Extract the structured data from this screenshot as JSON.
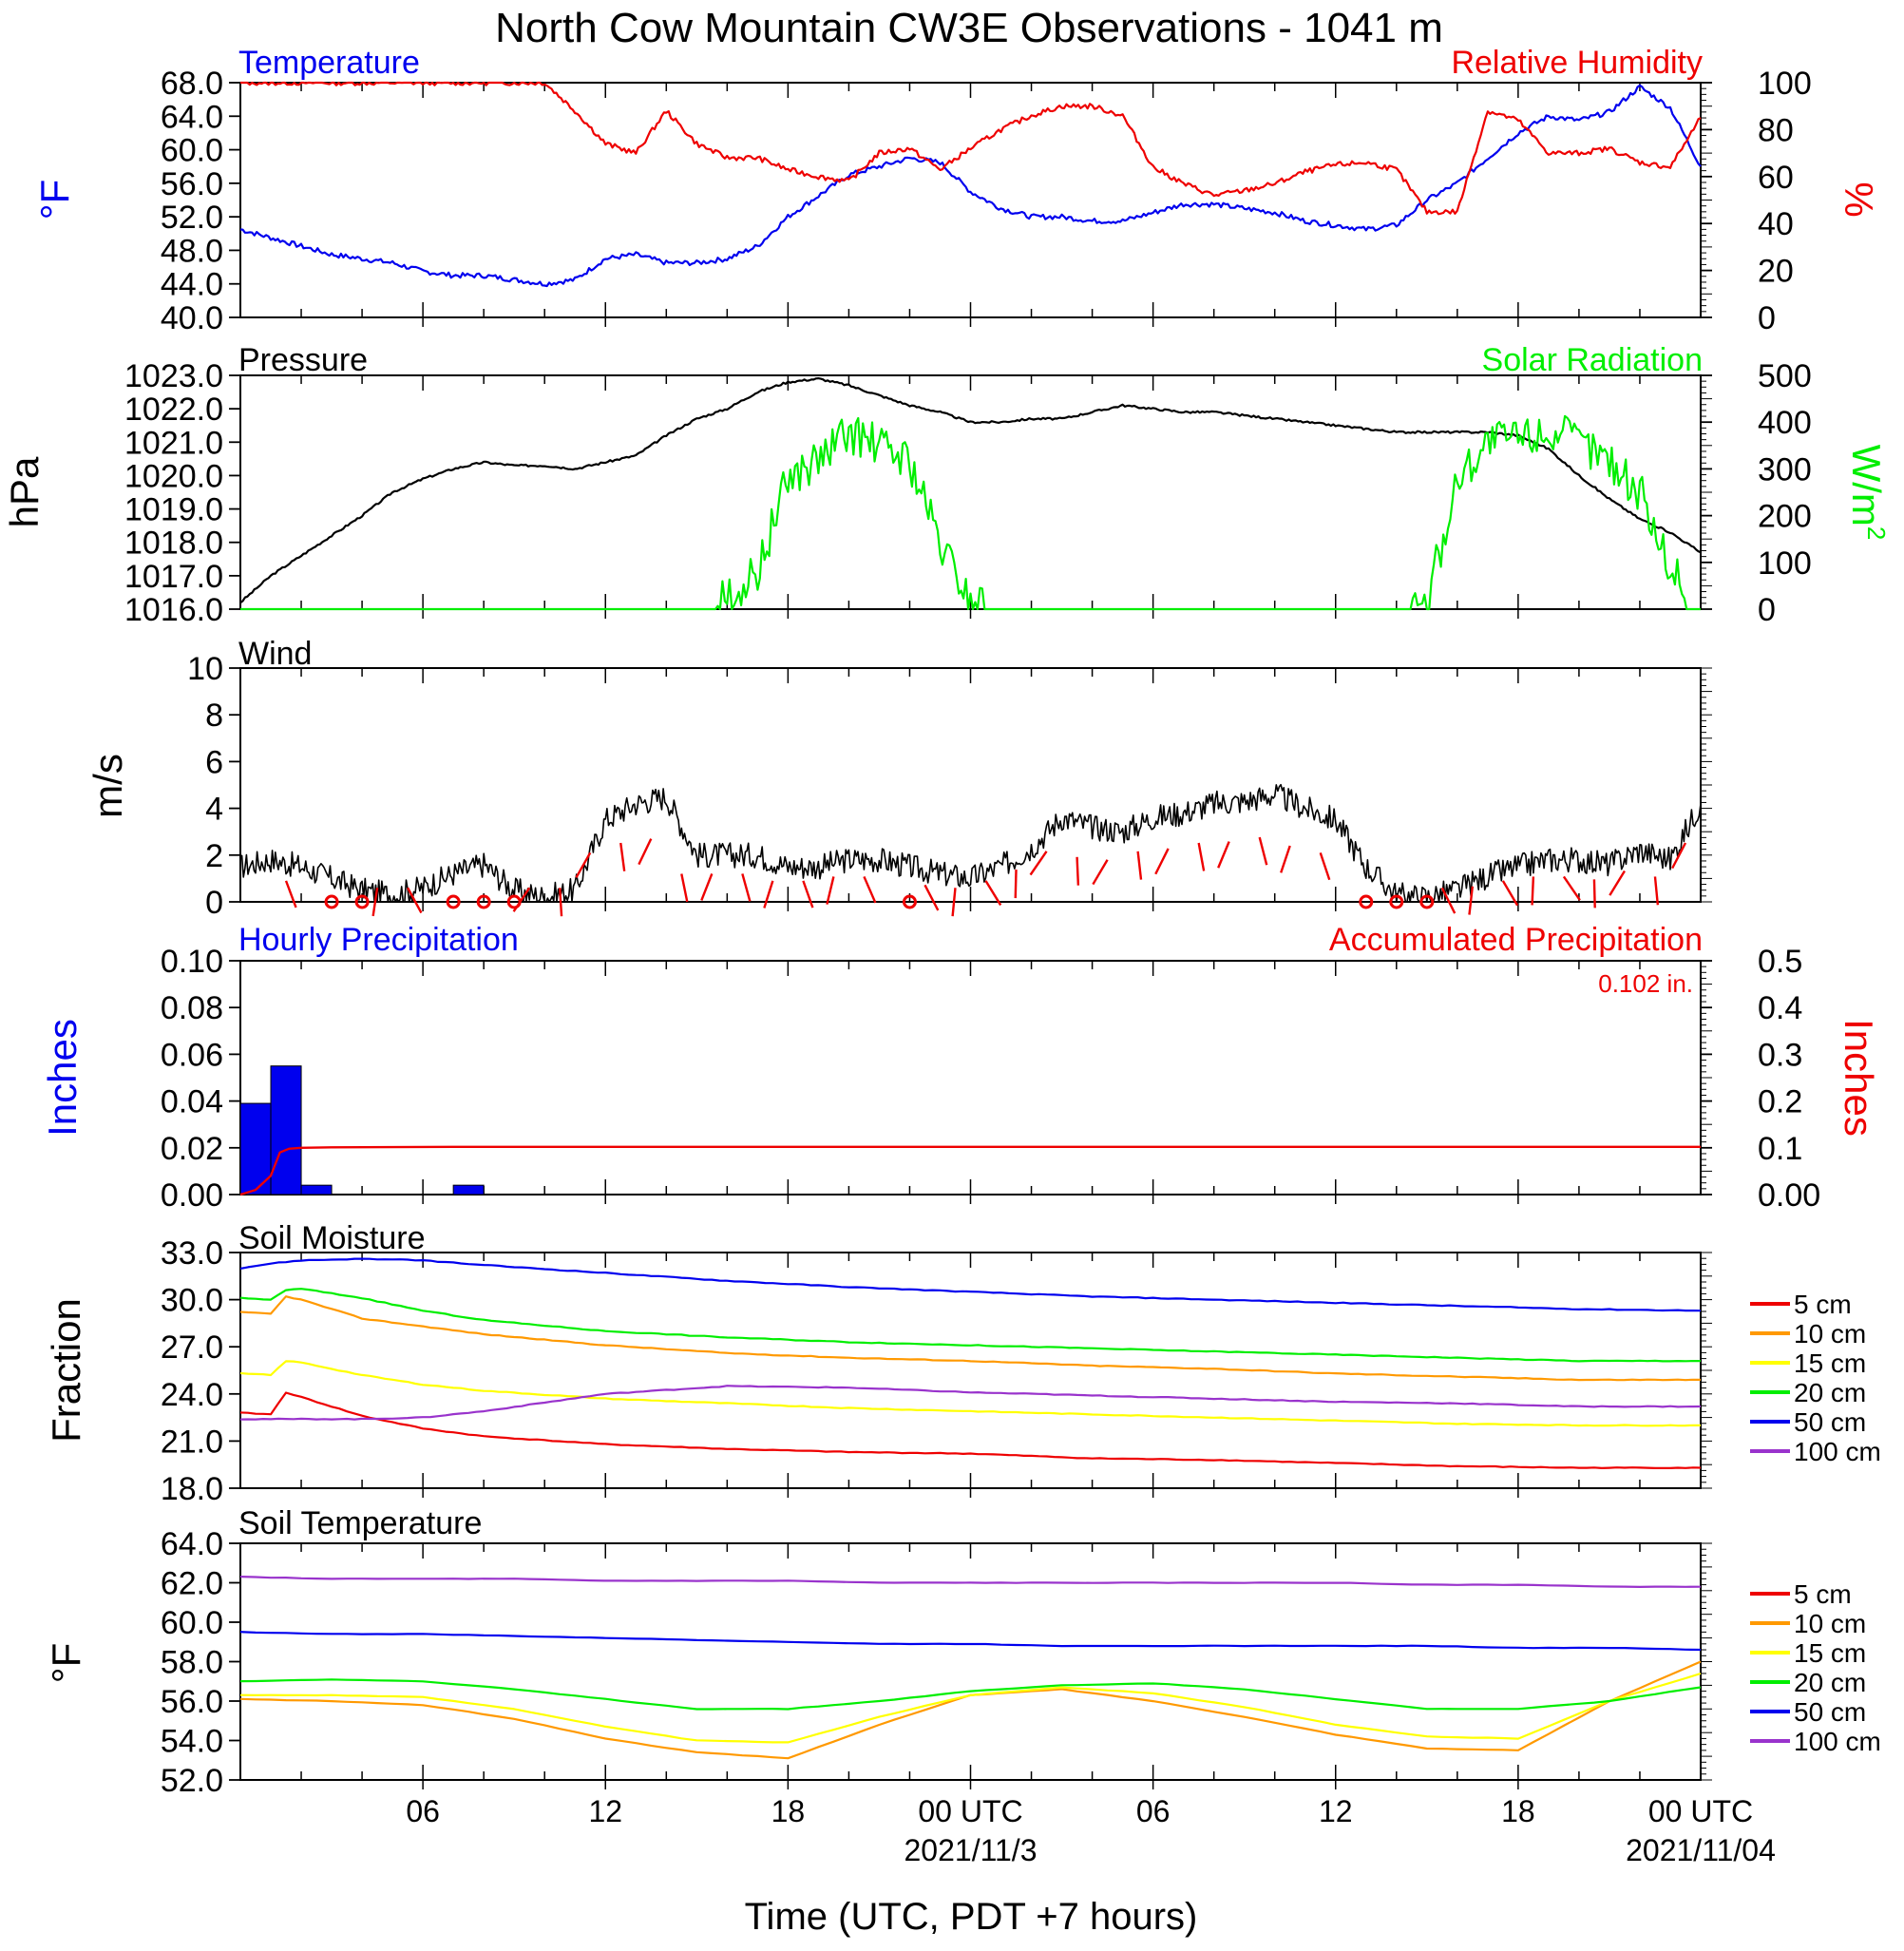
{
  "title": "North Cow Mountain CW3E Observations - 1041 m",
  "time_axis": {
    "tick_labels": [
      "06",
      "12",
      "18",
      "00 UTC",
      "06",
      "12",
      "18",
      "00 UTC"
    ],
    "date_labels": [
      "2021/11/3",
      "2021/11/04"
    ],
    "xlabel": "Time (UTC, PDT +7 hours)"
  },
  "colors": {
    "blue": "#0000ee",
    "red": "#ee0000",
    "green": "#00ee00",
    "black": "#000000",
    "orange": "#ff9900",
    "yellow": "#ffff00",
    "purple": "#9933cc"
  },
  "panels": {
    "temp_rh": {
      "left_title": "Temperature",
      "right_title": "Relative Humidity",
      "left_unit": "°F",
      "right_unit": "%",
      "left_ticks": [
        "68.0",
        "64.0",
        "60.0",
        "56.0",
        "52.0",
        "48.0",
        "44.0",
        "40.0"
      ],
      "right_ticks": [
        "100",
        "80",
        "60",
        "40",
        "20",
        "0"
      ]
    },
    "pressure_solar": {
      "left_title": "Pressure",
      "right_title": "Solar Radiation",
      "left_unit": "hPa",
      "right_unit": "W/m",
      "right_unit_sup": "2",
      "left_ticks": [
        "1023.0",
        "1022.0",
        "1021.0",
        "1020.0",
        "1019.0",
        "1018.0",
        "1017.0",
        "1016.0"
      ],
      "right_ticks": [
        "500",
        "400",
        "300",
        "200",
        "100",
        "0"
      ]
    },
    "wind": {
      "left_title": "Wind",
      "left_unit": "m/s",
      "left_ticks": [
        "10",
        "8",
        "6",
        "4",
        "2",
        "0"
      ]
    },
    "precip": {
      "left_title": "Hourly Precipitation",
      "right_title": "Accumulated Precipitation",
      "left_unit": "Inches",
      "right_unit": "Inches",
      "total": "0.102 in.",
      "left_ticks": [
        "0.10",
        "0.08",
        "0.06",
        "0.04",
        "0.02",
        "0.00"
      ],
      "right_ticks": [
        "0.5",
        "0.4",
        "0.3",
        "0.2",
        "0.1",
        "0.00"
      ]
    },
    "soil_moisture": {
      "left_title": "Soil Moisture",
      "left_unit": "Fraction",
      "left_ticks": [
        "33.0",
        "30.0",
        "27.0",
        "24.0",
        "21.0",
        "18.0"
      ],
      "legend": [
        "5 cm",
        "10 cm",
        "15 cm",
        "20 cm",
        "50 cm",
        "100 cm"
      ]
    },
    "soil_temp": {
      "left_title": "Soil Temperature",
      "left_unit": "°F",
      "left_ticks": [
        "64.0",
        "62.0",
        "60.0",
        "58.0",
        "56.0",
        "54.0",
        "52.0"
      ],
      "legend": [
        "5 cm",
        "10 cm",
        "15 cm",
        "20 cm",
        "50 cm",
        "100 cm"
      ]
    }
  },
  "chart_data": [
    {
      "type": "line",
      "title": "Temperature",
      "ylabel": "°F",
      "ylim": [
        40,
        68
      ],
      "x_hours": [
        0,
        1,
        2,
        3,
        4,
        5,
        6,
        7,
        8,
        9,
        10,
        11,
        12,
        13,
        14,
        15,
        16,
        17,
        18,
        19,
        20,
        21,
        22,
        23,
        24,
        25,
        26,
        27,
        28,
        29,
        30,
        31,
        32,
        33,
        34,
        35,
        36,
        37,
        38,
        39,
        40,
        41,
        42,
        43,
        44,
        45,
        46,
        47,
        48
      ],
      "series": [
        {
          "name": "Temperature",
          "color": "blue",
          "values": [
            50.5,
            49.5,
            48.5,
            47.5,
            47,
            46.5,
            45.5,
            45,
            45,
            44.5,
            44,
            44.5,
            47,
            47.5,
            46.5,
            46.5,
            47,
            48.5,
            52,
            54.5,
            57,
            58,
            59,
            58.5,
            55,
            53,
            52,
            52,
            51.5,
            51.5,
            52.5,
            53.5,
            53.5,
            53,
            52.5,
            51.5,
            51,
            50.5,
            51,
            54,
            56,
            59,
            62,
            64,
            63.5,
            64.5,
            67.5,
            65,
            58
          ]
        },
        {
          "name": "Relative Humidity",
          "color": "red",
          "axis": "right",
          "ylim": [
            0,
            100
          ],
          "values": [
            100,
            100,
            100,
            100,
            100,
            100,
            100,
            100,
            100,
            100,
            100,
            88,
            74,
            70,
            88,
            74,
            68,
            68,
            63,
            60,
            58,
            70,
            72,
            63,
            72,
            80,
            86,
            90,
            90,
            86,
            64,
            57,
            52,
            54,
            57,
            62,
            65,
            66,
            63,
            45,
            45,
            88,
            84,
            70,
            70,
            72,
            66,
            64,
            85
          ]
        }
      ]
    },
    {
      "type": "line",
      "title": "Pressure",
      "ylabel": "hPa",
      "ylim": [
        1016,
        1023
      ],
      "x_hours": [
        0,
        1,
        2,
        3,
        4,
        5,
        6,
        7,
        8,
        9,
        10,
        11,
        12,
        13,
        14,
        15,
        16,
        17,
        18,
        19,
        20,
        21,
        22,
        23,
        24,
        25,
        26,
        27,
        28,
        29,
        30,
        31,
        32,
        33,
        34,
        35,
        36,
        37,
        38,
        39,
        40,
        41,
        42,
        43,
        44,
        45,
        46,
        47,
        48
      ],
      "series": [
        {
          "name": "Pressure",
          "color": "black",
          "values": [
            1016.2,
            1017.0,
            1017.6,
            1018.2,
            1018.8,
            1019.5,
            1019.9,
            1020.2,
            1020.4,
            1020.3,
            1020.3,
            1020.2,
            1020.4,
            1020.6,
            1021.2,
            1021.7,
            1022.0,
            1022.5,
            1022.8,
            1022.9,
            1022.7,
            1022.4,
            1022.1,
            1021.9,
            1021.6,
            1021.6,
            1021.7,
            1021.7,
            1021.9,
            1022.1,
            1022.0,
            1021.9,
            1021.9,
            1021.8,
            1021.7,
            1021.6,
            1021.5,
            1021.4,
            1021.3,
            1021.3,
            1021.3,
            1021.3,
            1021.2,
            1020.8,
            1020.0,
            1019.3,
            1018.7,
            1018.3,
            1017.7
          ]
        },
        {
          "name": "Solar Radiation",
          "color": "green",
          "axis": "right",
          "ylim": [
            0,
            500
          ],
          "values": [
            0,
            0,
            0,
            0,
            0,
            0,
            0,
            0,
            0,
            0,
            0,
            0,
            0,
            0,
            0,
            0,
            20,
            80,
            280,
            320,
            380,
            350,
            320,
            140,
            20,
            0,
            0,
            0,
            0,
            0,
            0,
            0,
            0,
            0,
            0,
            0,
            0,
            0,
            0,
            10,
            280,
            360,
            370,
            380,
            360,
            320,
            250,
            90,
            0
          ]
        }
      ]
    },
    {
      "type": "line",
      "title": "Wind",
      "ylabel": "m/s",
      "ylim": [
        0,
        10
      ],
      "x_hours": [
        0,
        1,
        2,
        3,
        4,
        5,
        6,
        7,
        8,
        9,
        10,
        11,
        12,
        13,
        14,
        15,
        16,
        17,
        18,
        19,
        20,
        21,
        22,
        23,
        24,
        25,
        26,
        27,
        28,
        29,
        30,
        31,
        32,
        33,
        34,
        35,
        36,
        37,
        38,
        39,
        40,
        41,
        42,
        43,
        44,
        45,
        46,
        47,
        48
      ],
      "series": [
        {
          "name": "Wind speed",
          "color": "black",
          "values": [
            1.5,
            1.8,
            1.5,
            1,
            0.5,
            0.3,
            0.6,
            1.2,
            1.6,
            0.5,
            0.2,
            0.5,
            3.5,
            4.2,
            4.5,
            2,
            2,
            2,
            1.5,
            1.5,
            1.8,
            1.8,
            1.5,
            1.2,
            1,
            1.5,
            2.3,
            3.6,
            3.2,
            3,
            3.6,
            3.8,
            4.2,
            4.3,
            4.6,
            4,
            3.5,
            1.5,
            0.3,
            0.2,
            0.5,
            1.1,
            1.5,
            1.8,
            1.8,
            1.6,
            2.2,
            1.8,
            4.2
          ]
        }
      ],
      "calm_markers_hours": [
        3,
        4,
        7,
        8,
        9,
        22,
        37,
        38,
        39
      ]
    },
    {
      "type": "bar",
      "title": "Hourly Precipitation",
      "ylabel": "Inches",
      "ylim": [
        0,
        0.1
      ],
      "x_hours": [
        0,
        1,
        2,
        7
      ],
      "values": [
        0.039,
        0.055,
        0.004,
        0.004
      ],
      "accumulated": {
        "name": "Accumulated Precipitation",
        "color": "red",
        "ylim": [
          0,
          0.5
        ],
        "x_hours": [
          0,
          0.5,
          1,
          1.3,
          1.6,
          2,
          3,
          7,
          48
        ],
        "values": [
          0,
          0.01,
          0.04,
          0.09,
          0.098,
          0.1,
          0.101,
          0.102,
          0.102
        ]
      }
    },
    {
      "type": "line",
      "title": "Soil Moisture",
      "ylabel": "Fraction",
      "ylim": [
        18,
        33
      ],
      "x_hours": [
        0,
        1,
        1.5,
        2,
        4,
        6,
        8,
        12,
        16,
        20,
        24,
        28,
        32,
        36,
        40,
        44,
        48
      ],
      "series": [
        {
          "name": "5 cm",
          "color": "red",
          "values": [
            22.8,
            22.7,
            24.1,
            23.8,
            22.6,
            21.8,
            21.3,
            20.8,
            20.5,
            20.3,
            20.2,
            19.9,
            19.8,
            19.6,
            19.4,
            19.3,
            19.3
          ]
        },
        {
          "name": "10 cm",
          "color": "orange",
          "values": [
            29.2,
            29.1,
            30.2,
            30.0,
            28.8,
            28.3,
            27.8,
            27.1,
            26.6,
            26.3,
            26.1,
            25.8,
            25.6,
            25.3,
            25.1,
            24.9,
            24.9
          ]
        },
        {
          "name": "15 cm",
          "color": "yellow",
          "values": [
            25.3,
            25.2,
            26.1,
            26.0,
            25.2,
            24.6,
            24.2,
            23.7,
            23.4,
            23.1,
            22.9,
            22.7,
            22.5,
            22.3,
            22.1,
            22.0,
            22.0
          ]
        },
        {
          "name": "20 cm",
          "color": "green",
          "values": [
            30.1,
            30.0,
            30.6,
            30.7,
            30.1,
            29.3,
            28.7,
            28.0,
            27.6,
            27.3,
            27.1,
            26.9,
            26.7,
            26.5,
            26.3,
            26.1,
            26.1
          ]
        },
        {
          "name": "50 cm",
          "color": "blue",
          "values": [
            32.0,
            32.3,
            32.4,
            32.5,
            32.6,
            32.5,
            32.2,
            31.7,
            31.2,
            30.8,
            30.5,
            30.2,
            30.0,
            29.8,
            29.6,
            29.4,
            29.3
          ]
        },
        {
          "name": "100 cm",
          "color": "purple",
          "values": [
            22.4,
            22.4,
            22.4,
            22.4,
            22.4,
            22.5,
            22.9,
            24.0,
            24.5,
            24.4,
            24.1,
            23.9,
            23.7,
            23.5,
            23.4,
            23.2,
            23.2
          ]
        }
      ]
    },
    {
      "type": "line",
      "title": "Soil Temperature",
      "ylabel": "°F",
      "ylim": [
        52,
        64
      ],
      "x_hours": [
        0,
        3,
        6,
        9,
        12,
        15,
        18,
        21,
        24,
        27,
        30,
        33,
        36,
        39,
        42,
        45,
        48
      ],
      "series": [
        {
          "name": "5 cm",
          "color": "red",
          "values": []
        },
        {
          "name": "10 cm",
          "color": "orange",
          "values": [
            56.1,
            56.0,
            55.8,
            55.1,
            54.1,
            53.4,
            53.1,
            54.8,
            56.3,
            56.6,
            56.0,
            55.2,
            54.3,
            53.6,
            53.5,
            56.0,
            58.0
          ]
        },
        {
          "name": "15 cm",
          "color": "yellow",
          "values": [
            56.3,
            56.3,
            56.2,
            55.6,
            54.7,
            54.0,
            53.9,
            55.2,
            56.3,
            56.7,
            56.4,
            55.7,
            54.8,
            54.2,
            54.1,
            56.0,
            57.4
          ]
        },
        {
          "name": "20 cm",
          "color": "green",
          "values": [
            57.0,
            57.1,
            57.0,
            56.6,
            56.1,
            55.6,
            55.6,
            56.0,
            56.5,
            56.8,
            56.9,
            56.6,
            56.1,
            55.6,
            55.6,
            56.0,
            56.7
          ]
        },
        {
          "name": "50 cm",
          "color": "blue",
          "values": [
            59.5,
            59.4,
            59.4,
            59.3,
            59.2,
            59.1,
            59.0,
            58.9,
            58.9,
            58.8,
            58.8,
            58.8,
            58.8,
            58.8,
            58.7,
            58.7,
            58.6
          ]
        },
        {
          "name": "100 cm",
          "color": "purple",
          "values": [
            62.3,
            62.2,
            62.2,
            62.2,
            62.1,
            62.1,
            62.1,
            62.0,
            62.0,
            62.0,
            62.0,
            62.0,
            62.0,
            61.9,
            61.9,
            61.8,
            61.8
          ]
        }
      ]
    }
  ]
}
